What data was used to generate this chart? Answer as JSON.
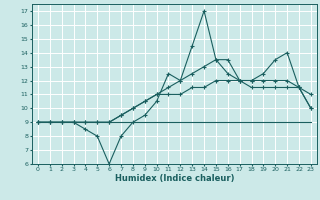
{
  "xlabel": "Humidex (Indice chaleur)",
  "xlim": [
    -0.5,
    23.5
  ],
  "ylim": [
    6,
    17.5
  ],
  "yticks": [
    6,
    7,
    8,
    9,
    10,
    11,
    12,
    13,
    14,
    15,
    16,
    17
  ],
  "xticks": [
    0,
    1,
    2,
    3,
    4,
    5,
    6,
    7,
    8,
    9,
    10,
    11,
    12,
    13,
    14,
    15,
    16,
    17,
    18,
    19,
    20,
    21,
    22,
    23
  ],
  "bg_color": "#cce9e8",
  "grid_color": "#ffffff",
  "line_color": "#1a5f5f",
  "line1": [
    9,
    9,
    9,
    9,
    8.5,
    8,
    6,
    8,
    9,
    9.5,
    10.5,
    12.5,
    12,
    14.5,
    17,
    13.5,
    12.5,
    12,
    12,
    12.5,
    13.5,
    14,
    11.5,
    10
  ],
  "line2": [
    9,
    9,
    9,
    9,
    9,
    9,
    9,
    9,
    9,
    9,
    9,
    9,
    9,
    9,
    9,
    9,
    9,
    9,
    9,
    9,
    9,
    9,
    9,
    9
  ],
  "line3": [
    9,
    9,
    9,
    9,
    9,
    9,
    9,
    9.5,
    10,
    10.5,
    11,
    11.5,
    12,
    12.5,
    13,
    13.5,
    13.5,
    12,
    11.5,
    11.5,
    11.5,
    11.5,
    11.5,
    11
  ],
  "line4": [
    9,
    9,
    9,
    9,
    9,
    9,
    9,
    9.5,
    10,
    10.5,
    11,
    11,
    11,
    11.5,
    11.5,
    12,
    12,
    12,
    12,
    12,
    12,
    12,
    11.5,
    10
  ]
}
